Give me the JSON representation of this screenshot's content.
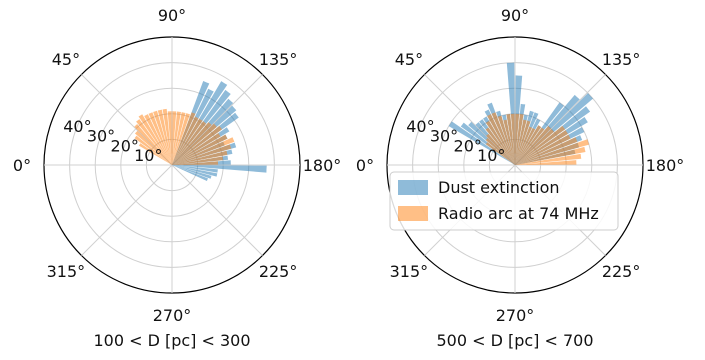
{
  "chart_data": [
    {
      "type": "bar",
      "projection": "polar",
      "xlabel": "100 < D [pc] < 300",
      "theta_ticks": [
        "0°",
        "45°",
        "90°",
        "135°",
        "180°",
        "225°",
        "270°",
        "315°"
      ],
      "r_ticks": [
        "10°",
        "20°",
        "30°",
        "40°"
      ],
      "rlim": [
        0,
        50
      ],
      "grid": true,
      "bin_width_deg": 5,
      "series": [
        {
          "name": "Dust extinction",
          "color": "#1f77b4",
          "theta": [
            112.5,
            117.5,
            122.5,
            127.5,
            132.5,
            137.5,
            142.5,
            147.5,
            152.5,
            157.5,
            162.5,
            167.5,
            172.5,
            177.5,
            182.5,
            187.5,
            192.5,
            197.5,
            202.5
          ],
          "r": [
            35,
            33,
            38,
            36,
            34,
            33,
            32,
            26,
            24,
            22,
            26,
            24,
            22,
            23,
            37,
            18,
            18,
            16,
            15
          ]
        },
        {
          "name": "Radio arc at 74 MHz",
          "color": "#ff7f0e",
          "theta": [
            32.5,
            37.5,
            42.5,
            47.5,
            52.5,
            57.5,
            62.5,
            67.5,
            72.5,
            77.5,
            82.5,
            87.5,
            92.5,
            97.5,
            102.5,
            107.5,
            112.5,
            117.5,
            122.5,
            127.5,
            132.5,
            137.5,
            142.5,
            147.5,
            152.5,
            157.5,
            162.5,
            167.5,
            172.5,
            177.5
          ],
          "r": [
            15,
            18,
            19,
            21,
            22,
            23,
            22,
            22,
            22,
            22,
            22,
            21,
            21,
            21,
            21,
            21,
            22,
            21,
            21,
            21,
            22,
            23,
            24,
            22,
            24,
            26,
            24,
            22,
            20,
            18
          ]
        }
      ]
    },
    {
      "type": "bar",
      "projection": "polar",
      "xlabel": "500 < D [pc] < 700",
      "theta_ticks": [
        "0°",
        "45°",
        "90°",
        "135°",
        "180°",
        "225°",
        "270°",
        "315°"
      ],
      "r_ticks": [
        "10°",
        "20°",
        "30°",
        "40°"
      ],
      "rlim": [
        0,
        50
      ],
      "grid": true,
      "bin_width_deg": 5,
      "legend": {
        "placement": "center-right",
        "entries": [
          "Dust extinction",
          "Radio arc at 74 MHz"
        ]
      },
      "series": [
        {
          "name": "Dust extinction",
          "color": "#1f77b4",
          "theta": [
            32.5,
            37.5,
            42.5,
            47.5,
            52.5,
            57.5,
            62.5,
            67.5,
            72.5,
            77.5,
            82.5,
            87.5,
            92.5,
            97.5,
            102.5,
            107.5,
            112.5,
            117.5,
            122.5,
            127.5,
            132.5,
            137.5,
            142.5,
            147.5,
            152.5,
            157.5,
            162.5,
            167.5
          ],
          "r": [
            30,
            26,
            24,
            22,
            22,
            22,
            24,
            26,
            22,
            20,
            20,
            40,
            35,
            24,
            20,
            22,
            22,
            20,
            18,
            30,
            36,
            40,
            36,
            33,
            30,
            28,
            26,
            24
          ]
        },
        {
          "name": "Radio arc at 74 MHz",
          "color": "#ff7f0e",
          "theta": [
            37.5,
            42.5,
            47.5,
            52.5,
            57.5,
            62.5,
            67.5,
            72.5,
            77.5,
            82.5,
            87.5,
            92.5,
            97.5,
            102.5,
            107.5,
            112.5,
            117.5,
            122.5,
            127.5,
            132.5,
            137.5,
            142.5,
            147.5,
            152.5,
            157.5,
            162.5,
            167.5,
            172.5,
            177.5
          ],
          "r": [
            14,
            15,
            16,
            18,
            20,
            22,
            22,
            20,
            18,
            20,
            20,
            20,
            20,
            18,
            18,
            16,
            16,
            18,
            18,
            20,
            20,
            24,
            24,
            24,
            26,
            30,
            28,
            26,
            24
          ]
        }
      ]
    }
  ]
}
